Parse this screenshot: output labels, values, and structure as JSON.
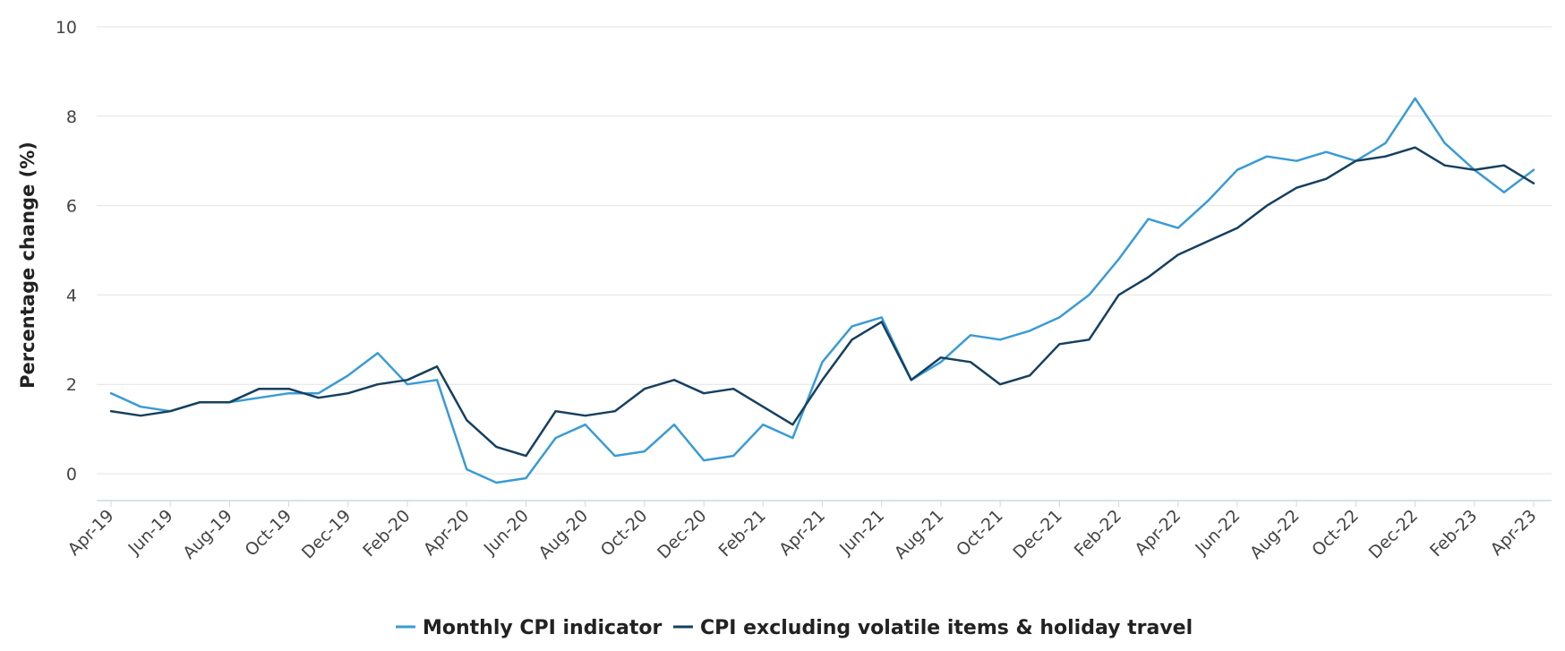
{
  "chart_data": {
    "type": "line",
    "title": "",
    "xlabel": "",
    "ylabel": "Percentage change (%)",
    "ylim": [
      -0.6,
      10
    ],
    "yticks": [
      0,
      2,
      4,
      6,
      8,
      10
    ],
    "grid": true,
    "legend_position": "bottom-center",
    "x": [
      "Apr-19",
      "May-19",
      "Jun-19",
      "Jul-19",
      "Aug-19",
      "Sep-19",
      "Oct-19",
      "Nov-19",
      "Dec-19",
      "Jan-20",
      "Feb-20",
      "Mar-20",
      "Apr-20",
      "May-20",
      "Jun-20",
      "Jul-20",
      "Aug-20",
      "Sep-20",
      "Oct-20",
      "Nov-20",
      "Dec-20",
      "Jan-21",
      "Feb-21",
      "Mar-21",
      "Apr-21",
      "May-21",
      "Jun-21",
      "Jul-21",
      "Aug-21",
      "Sep-21",
      "Oct-21",
      "Nov-21",
      "Dec-21",
      "Jan-22",
      "Feb-22",
      "Mar-22",
      "Apr-22",
      "May-22",
      "Jun-22",
      "Jul-22",
      "Aug-22",
      "Sep-22",
      "Oct-22",
      "Nov-22",
      "Dec-22",
      "Jan-23",
      "Feb-23",
      "Mar-23",
      "Apr-23"
    ],
    "xtick_labels": [
      "Apr-19",
      "Jun-19",
      "Aug-19",
      "Oct-19",
      "Dec-19",
      "Feb-20",
      "Apr-20",
      "Jun-20",
      "Aug-20",
      "Oct-20",
      "Dec-20",
      "Feb-21",
      "Apr-21",
      "Jun-21",
      "Aug-21",
      "Oct-21",
      "Dec-21",
      "Feb-22",
      "Apr-22",
      "Jun-22",
      "Aug-22",
      "Oct-22",
      "Dec-22",
      "Feb-23",
      "Apr-23"
    ],
    "series": [
      {
        "name": "Monthly CPI indicator",
        "color": "#3a9bd5",
        "values": [
          1.8,
          1.5,
          1.4,
          1.6,
          1.6,
          1.7,
          1.8,
          1.8,
          2.2,
          2.7,
          2.0,
          2.1,
          0.1,
          -0.2,
          -0.1,
          0.8,
          1.1,
          0.4,
          0.5,
          1.1,
          0.3,
          0.4,
          1.1,
          0.8,
          2.5,
          3.3,
          3.5,
          2.1,
          2.5,
          3.1,
          3.0,
          3.2,
          3.5,
          4.0,
          4.8,
          5.7,
          5.5,
          6.1,
          6.8,
          7.1,
          7.0,
          7.2,
          7.0,
          7.4,
          8.4,
          7.4,
          6.8,
          6.3,
          6.8
        ]
      },
      {
        "name": "CPI excluding volatile items & holiday travel",
        "color": "#16405f",
        "values": [
          1.4,
          1.3,
          1.4,
          1.6,
          1.6,
          1.9,
          1.9,
          1.7,
          1.8,
          2.0,
          2.1,
          2.4,
          1.2,
          0.6,
          0.4,
          1.4,
          1.3,
          1.4,
          1.9,
          2.1,
          1.8,
          1.9,
          1.5,
          1.1,
          2.1,
          3.0,
          3.4,
          2.1,
          2.6,
          2.5,
          2.0,
          2.2,
          2.9,
          3.0,
          4.0,
          4.4,
          4.9,
          5.2,
          5.5,
          6.0,
          6.4,
          6.6,
          7.0,
          7.1,
          7.3,
          6.9,
          6.8,
          6.9,
          6.5
        ]
      }
    ]
  }
}
